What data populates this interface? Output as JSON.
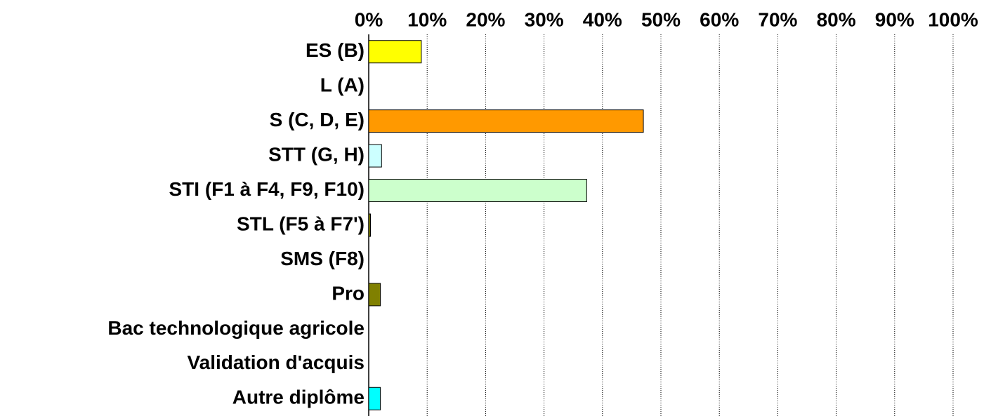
{
  "chart_data": {
    "type": "bar",
    "orientation": "horizontal",
    "categories": [
      "ES (B)",
      "L (A)",
      "S (C, D, E)",
      "STT (G, H)",
      "STI (F1 à F4, F9, F10)",
      "STL (F5 à F7')",
      "SMS (F8)",
      "Pro",
      "Bac technologique agricole",
      "Validation d'acquis",
      "Autre diplôme"
    ],
    "values": [
      9,
      0,
      47,
      2.2,
      37.3,
      0.3,
      0,
      2,
      0,
      0,
      2
    ],
    "colors": [
      "#ffff00",
      "#9999ff",
      "#ff9900",
      "#ccffff",
      "#ccffcc",
      "#808000",
      "#ff99cc",
      "#808000",
      "#993366",
      "#ffcc99",
      "#00ffff"
    ],
    "xlim": [
      0,
      100
    ],
    "xticks": [
      {
        "value": 0,
        "label": "0%"
      },
      {
        "value": 10,
        "label": "10%"
      },
      {
        "value": 20,
        "label": "20%"
      },
      {
        "value": 30,
        "label": "30%"
      },
      {
        "value": 40,
        "label": "40%"
      },
      {
        "value": 50,
        "label": "50%"
      },
      {
        "value": 60,
        "label": "60%"
      },
      {
        "value": 70,
        "label": "70%"
      },
      {
        "value": 80,
        "label": "80%"
      },
      {
        "value": 90,
        "label": "90%"
      },
      {
        "value": 100,
        "label": "100%"
      }
    ],
    "grid": true
  }
}
